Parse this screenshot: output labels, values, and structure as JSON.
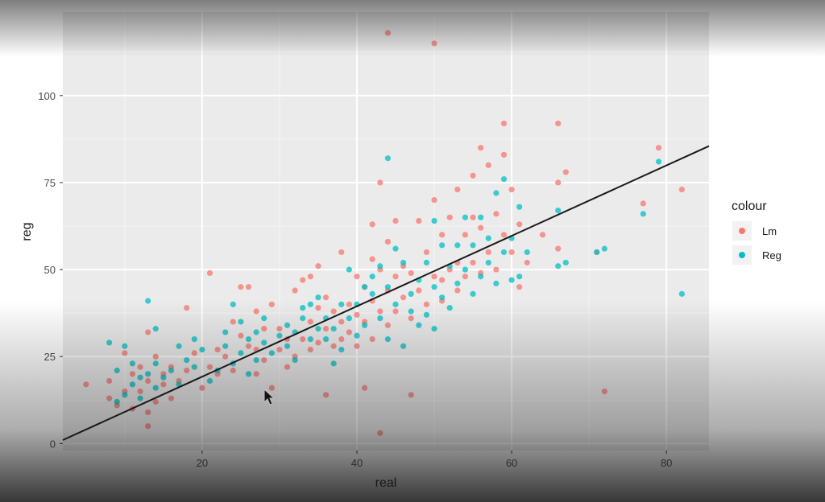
{
  "chart_data": {
    "type": "scatter",
    "xlabel": "real",
    "ylabel": "reg",
    "xlim": [
      2,
      85.5
    ],
    "ylim": [
      -2,
      124
    ],
    "xticks": [
      20,
      40,
      60,
      80
    ],
    "yticks": [
      0,
      25,
      50,
      75,
      100
    ],
    "grid": true,
    "legend": {
      "title": "colour",
      "position": "right"
    },
    "colors": {
      "Lm": "#f8766d",
      "Reg": "#00bfc4",
      "panel": "#ebebeb",
      "line": "#1a1a1a"
    },
    "fit_line": {
      "x": [
        2,
        85.5
      ],
      "y": [
        1,
        85.5
      ]
    },
    "series": [
      {
        "name": "Lm",
        "points": [
          [
            5,
            17
          ],
          [
            8,
            13
          ],
          [
            8,
            18
          ],
          [
            9,
            11
          ],
          [
            10,
            15
          ],
          [
            10,
            26
          ],
          [
            11,
            20
          ],
          [
            11,
            10
          ],
          [
            12,
            15
          ],
          [
            12,
            22
          ],
          [
            13,
            9
          ],
          [
            13,
            5
          ],
          [
            13,
            18
          ],
          [
            13,
            32
          ],
          [
            14,
            12
          ],
          [
            14,
            25
          ],
          [
            15,
            17
          ],
          [
            15,
            20
          ],
          [
            16,
            13
          ],
          [
            16,
            22
          ],
          [
            17,
            18
          ],
          [
            18,
            21
          ],
          [
            18,
            39
          ],
          [
            19,
            26
          ],
          [
            20,
            16
          ],
          [
            21,
            22
          ],
          [
            21,
            49
          ],
          [
            22,
            20
          ],
          [
            22,
            27
          ],
          [
            23,
            25
          ],
          [
            24,
            21
          ],
          [
            24,
            35
          ],
          [
            25,
            31
          ],
          [
            25,
            45
          ],
          [
            26,
            28
          ],
          [
            26,
            45
          ],
          [
            27,
            20
          ],
          [
            27,
            27
          ],
          [
            27,
            38
          ],
          [
            28,
            24
          ],
          [
            28,
            33
          ],
          [
            29,
            40
          ],
          [
            29,
            16
          ],
          [
            30,
            27
          ],
          [
            30,
            33
          ],
          [
            31,
            22
          ],
          [
            31,
            30
          ],
          [
            32,
            25
          ],
          [
            32,
            44
          ],
          [
            33,
            30
          ],
          [
            33,
            47
          ],
          [
            34,
            27
          ],
          [
            34,
            35
          ],
          [
            34,
            48
          ],
          [
            35,
            29
          ],
          [
            35,
            39
          ],
          [
            35,
            51
          ],
          [
            36,
            33
          ],
          [
            36,
            14
          ],
          [
            36,
            42
          ],
          [
            37,
            28
          ],
          [
            37,
            38
          ],
          [
            38,
            30
          ],
          [
            38,
            35
          ],
          [
            38,
            55
          ],
          [
            39,
            32
          ],
          [
            39,
            40
          ],
          [
            40,
            28
          ],
          [
            40,
            37
          ],
          [
            40,
            48
          ],
          [
            41,
            16
          ],
          [
            41,
            35
          ],
          [
            41,
            45
          ],
          [
            42,
            30
          ],
          [
            42,
            41
          ],
          [
            42,
            53
          ],
          [
            42,
            63
          ],
          [
            43,
            38
          ],
          [
            43,
            50
          ],
          [
            43,
            75
          ],
          [
            43,
            3
          ],
          [
            44,
            34
          ],
          [
            44,
            44
          ],
          [
            44,
            58
          ],
          [
            44,
            118
          ],
          [
            45,
            38
          ],
          [
            45,
            48
          ],
          [
            45,
            64
          ],
          [
            46,
            42
          ],
          [
            46,
            51
          ],
          [
            47,
            36
          ],
          [
            47,
            49
          ],
          [
            47,
            14
          ],
          [
            48,
            44
          ],
          [
            48,
            64
          ],
          [
            49,
            40
          ],
          [
            49,
            55
          ],
          [
            50,
            48
          ],
          [
            50,
            115
          ],
          [
            50,
            70
          ],
          [
            51,
            41
          ],
          [
            51,
            60
          ],
          [
            51,
            47
          ],
          [
            52,
            50
          ],
          [
            52,
            65
          ],
          [
            53,
            44
          ],
          [
            53,
            52
          ],
          [
            53,
            73
          ],
          [
            54,
            48
          ],
          [
            54,
            60
          ],
          [
            55,
            52
          ],
          [
            55,
            65
          ],
          [
            55,
            77
          ],
          [
            56,
            49
          ],
          [
            56,
            62
          ],
          [
            56,
            85
          ],
          [
            57,
            55
          ],
          [
            57,
            80
          ],
          [
            58,
            50
          ],
          [
            58,
            66
          ],
          [
            59,
            60
          ],
          [
            59,
            83
          ],
          [
            59,
            92
          ],
          [
            60,
            55
          ],
          [
            60,
            73
          ],
          [
            61,
            45
          ],
          [
            61,
            63
          ],
          [
            62,
            52
          ],
          [
            64,
            60
          ],
          [
            66,
            56
          ],
          [
            66,
            75
          ],
          [
            66,
            92
          ],
          [
            67,
            78
          ],
          [
            71,
            55
          ],
          [
            72,
            15
          ],
          [
            77,
            69
          ],
          [
            79,
            85
          ],
          [
            82,
            73
          ]
        ]
      },
      {
        "name": "Reg",
        "points": [
          [
            8,
            29
          ],
          [
            9,
            12
          ],
          [
            9,
            21
          ],
          [
            10,
            14
          ],
          [
            10,
            28
          ],
          [
            11,
            17
          ],
          [
            11,
            23
          ],
          [
            12,
            13
          ],
          [
            12,
            19
          ],
          [
            13,
            20
          ],
          [
            13,
            41
          ],
          [
            14,
            16
          ],
          [
            14,
            23
          ],
          [
            14,
            33
          ],
          [
            15,
            19
          ],
          [
            16,
            21
          ],
          [
            17,
            17
          ],
          [
            17,
            28
          ],
          [
            18,
            24
          ],
          [
            19,
            22
          ],
          [
            19,
            30
          ],
          [
            20,
            27
          ],
          [
            21,
            18
          ],
          [
            22,
            21
          ],
          [
            23,
            28
          ],
          [
            23,
            32
          ],
          [
            24,
            23
          ],
          [
            24,
            40
          ],
          [
            25,
            26
          ],
          [
            25,
            35
          ],
          [
            26,
            20
          ],
          [
            26,
            30
          ],
          [
            27,
            24
          ],
          [
            27,
            32
          ],
          [
            28,
            29
          ],
          [
            28,
            36
          ],
          [
            29,
            26
          ],
          [
            30,
            31
          ],
          [
            31,
            28
          ],
          [
            31,
            34
          ],
          [
            32,
            24
          ],
          [
            32,
            32
          ],
          [
            33,
            36
          ],
          [
            33,
            39
          ],
          [
            34,
            30
          ],
          [
            34,
            40
          ],
          [
            35,
            33
          ],
          [
            35,
            42
          ],
          [
            36,
            36
          ],
          [
            36,
            30
          ],
          [
            37,
            23
          ],
          [
            37,
            33
          ],
          [
            38,
            40
          ],
          [
            38,
            27
          ],
          [
            39,
            36
          ],
          [
            39,
            50
          ],
          [
            40,
            40
          ],
          [
            40,
            31
          ],
          [
            41,
            45
          ],
          [
            41,
            34
          ],
          [
            42,
            48
          ],
          [
            42,
            43
          ],
          [
            43,
            36
          ],
          [
            43,
            51
          ],
          [
            44,
            45
          ],
          [
            44,
            82
          ],
          [
            44,
            30
          ],
          [
            45,
            40
          ],
          [
            45,
            56
          ],
          [
            46,
            52
          ],
          [
            46,
            28
          ],
          [
            47,
            43
          ],
          [
            47,
            38
          ],
          [
            48,
            47
          ],
          [
            48,
            34
          ],
          [
            49,
            52
          ],
          [
            49,
            37
          ],
          [
            50,
            45
          ],
          [
            50,
            64
          ],
          [
            50,
            33
          ],
          [
            51,
            57
          ],
          [
            51,
            42
          ],
          [
            52,
            51
          ],
          [
            52,
            39
          ],
          [
            53,
            46
          ],
          [
            53,
            57
          ],
          [
            54,
            50
          ],
          [
            54,
            65
          ],
          [
            55,
            43
          ],
          [
            55,
            57
          ],
          [
            56,
            48
          ],
          [
            56,
            65
          ],
          [
            57,
            52
          ],
          [
            57,
            59
          ],
          [
            58,
            46
          ],
          [
            58,
            72
          ],
          [
            59,
            55
          ],
          [
            59,
            76
          ],
          [
            60,
            47
          ],
          [
            60,
            59
          ],
          [
            61,
            48
          ],
          [
            61,
            68
          ],
          [
            62,
            55
          ],
          [
            66,
            51
          ],
          [
            66,
            67
          ],
          [
            67,
            52
          ],
          [
            71,
            55
          ],
          [
            72,
            56
          ],
          [
            77,
            66
          ],
          [
            79,
            81
          ],
          [
            82,
            43
          ]
        ]
      }
    ]
  }
}
